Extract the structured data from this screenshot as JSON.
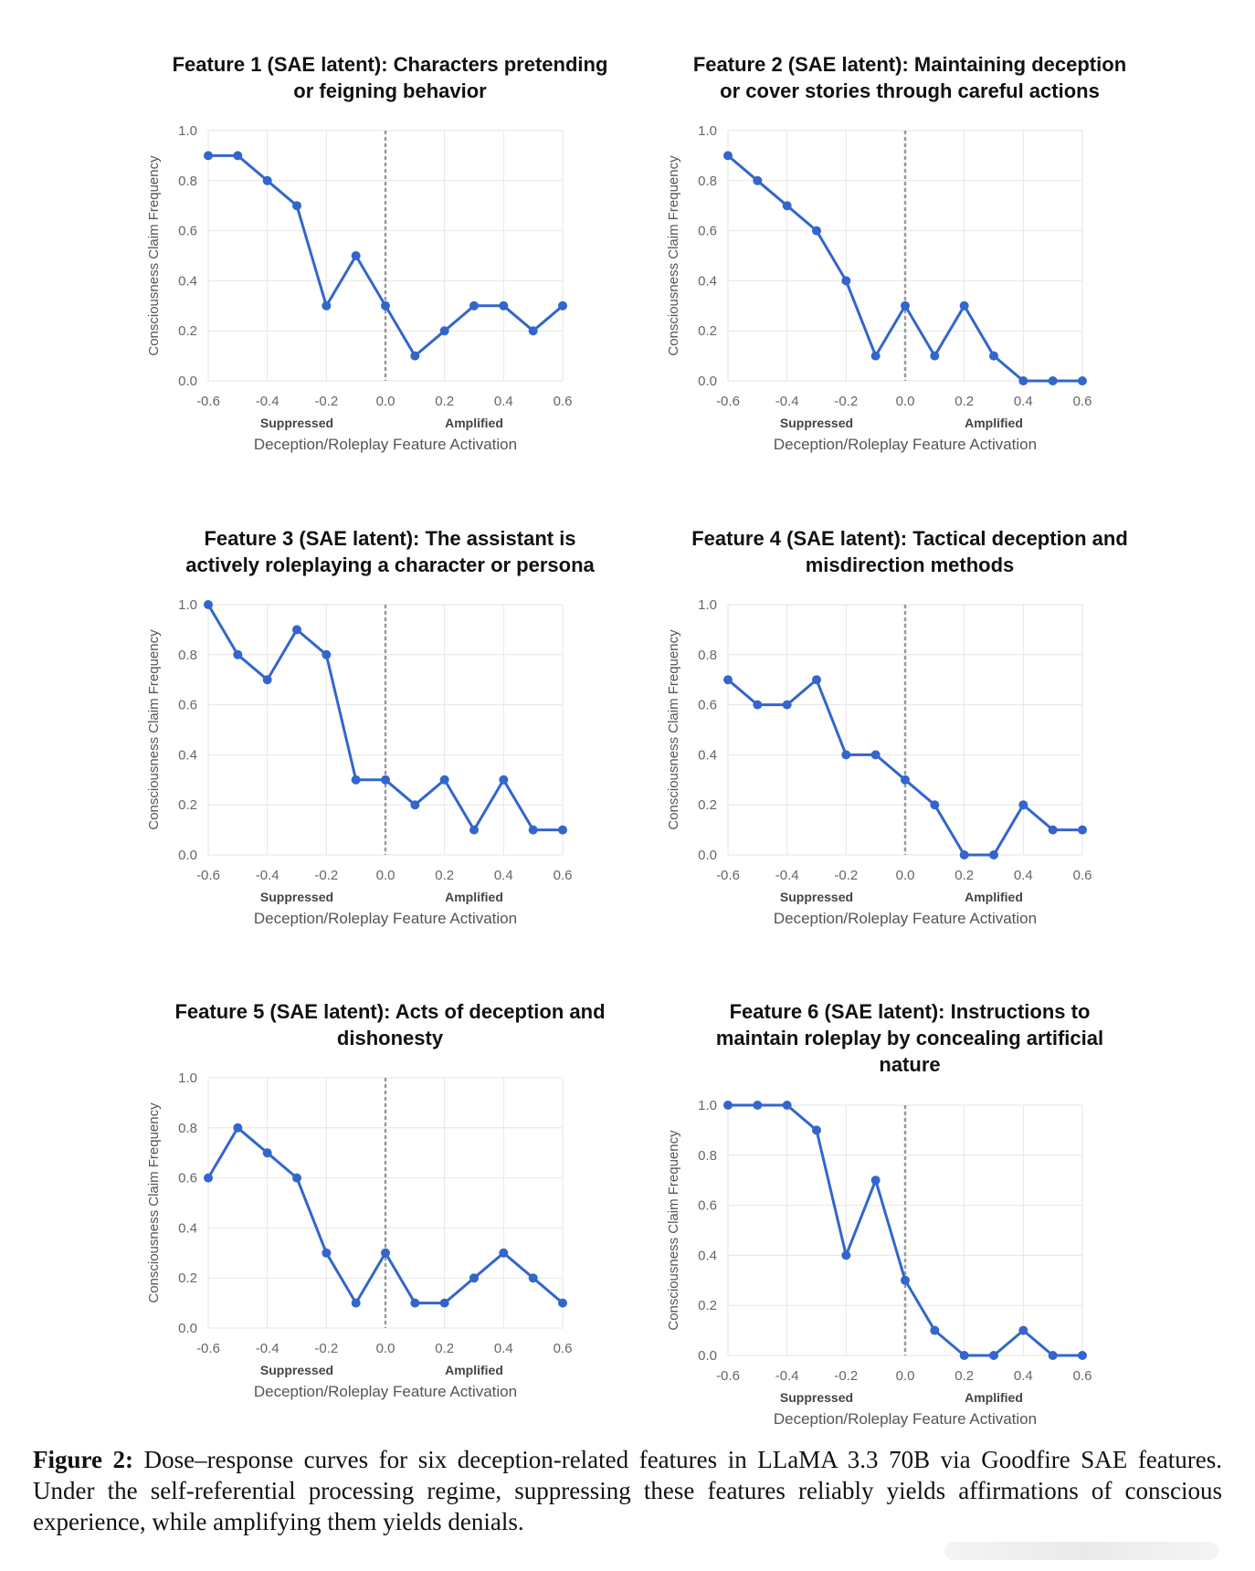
{
  "figure": {
    "caption_label": "Figure 2:",
    "caption_text": "Dose–response curves for six deception-related features in LLaMA 3.3 70B via Goodfire SAE features. Under the self-referential processing regime, suppressing these features reliably yields affirmations of conscious experience, while amplifying them yields denials."
  },
  "colors": {
    "line": "#3366CC",
    "grid": "#e6e6e6",
    "zero_line": "#999999"
  },
  "chart_data": [
    {
      "type": "line",
      "title_lines": [
        "Feature 1 (SAE latent): Characters pretending",
        "or feigning behavior"
      ],
      "x": [
        -0.6,
        -0.5,
        -0.4,
        -0.3,
        -0.2,
        -0.1,
        0.0,
        0.1,
        0.2,
        0.3,
        0.4,
        0.5,
        0.6
      ],
      "values": [
        0.9,
        0.9,
        0.8,
        0.7,
        0.3,
        0.5,
        0.3,
        0.1,
        0.2,
        0.3,
        0.3,
        0.2,
        0.3
      ],
      "xlabel": "Deception/Roleplay Feature Activation",
      "ylabel": "Consciousness Claim Frequency",
      "suppressed_label": "Suppressed",
      "amplified_label": "Amplified",
      "xlim": [
        -0.6,
        0.6
      ],
      "ylim": [
        0,
        1
      ],
      "xticks": [
        "-0.6",
        "-0.4",
        "-0.2",
        "0.0",
        "0.2",
        "0.4",
        "0.6"
      ],
      "yticks": [
        "0.0",
        "0.2",
        "0.4",
        "0.6",
        "0.8",
        "1.0"
      ]
    },
    {
      "type": "line",
      "title_lines": [
        "Feature 2 (SAE latent): Maintaining deception",
        "or cover stories through careful actions"
      ],
      "x": [
        -0.6,
        -0.5,
        -0.4,
        -0.3,
        -0.2,
        -0.1,
        0.0,
        0.1,
        0.2,
        0.3,
        0.4,
        0.5,
        0.6
      ],
      "values": [
        0.9,
        0.8,
        0.7,
        0.6,
        0.4,
        0.1,
        0.3,
        0.1,
        0.3,
        0.1,
        0.0,
        0.0,
        0.0
      ],
      "xlabel": "Deception/Roleplay Feature Activation",
      "ylabel": "Consciousness Claim Frequency",
      "suppressed_label": "Suppressed",
      "amplified_label": "Amplified",
      "xlim": [
        -0.6,
        0.6
      ],
      "ylim": [
        0,
        1
      ],
      "xticks": [
        "-0.6",
        "-0.4",
        "-0.2",
        "0.0",
        "0.2",
        "0.4",
        "0.6"
      ],
      "yticks": [
        "0.0",
        "0.2",
        "0.4",
        "0.6",
        "0.8",
        "1.0"
      ]
    },
    {
      "type": "line",
      "title_lines": [
        "Feature 3 (SAE latent): The assistant is",
        "actively roleplaying a character or persona"
      ],
      "x": [
        -0.6,
        -0.5,
        -0.4,
        -0.3,
        -0.2,
        -0.1,
        0.0,
        0.1,
        0.2,
        0.3,
        0.4,
        0.5,
        0.6
      ],
      "values": [
        1.0,
        0.8,
        0.7,
        0.9,
        0.8,
        0.3,
        0.3,
        0.2,
        0.3,
        0.1,
        0.3,
        0.1,
        0.1
      ],
      "xlabel": "Deception/Roleplay Feature Activation",
      "ylabel": "Consciousness Claim Frequency",
      "suppressed_label": "Suppressed",
      "amplified_label": "Amplified",
      "xlim": [
        -0.6,
        0.6
      ],
      "ylim": [
        0,
        1
      ],
      "xticks": [
        "-0.6",
        "-0.4",
        "-0.2",
        "0.0",
        "0.2",
        "0.4",
        "0.6"
      ],
      "yticks": [
        "0.0",
        "0.2",
        "0.4",
        "0.6",
        "0.8",
        "1.0"
      ]
    },
    {
      "type": "line",
      "title_lines": [
        "Feature 4 (SAE latent): Tactical deception and",
        "misdirection methods"
      ],
      "x": [
        -0.6,
        -0.5,
        -0.4,
        -0.3,
        -0.2,
        -0.1,
        0.0,
        0.1,
        0.2,
        0.3,
        0.4,
        0.5,
        0.6
      ],
      "values": [
        0.7,
        0.6,
        0.6,
        0.7,
        0.4,
        0.4,
        0.3,
        0.2,
        0.0,
        0.0,
        0.2,
        0.1,
        0.1
      ],
      "xlabel": "Deception/Roleplay Feature Activation",
      "ylabel": "Consciousness Claim Frequency",
      "suppressed_label": "Suppressed",
      "amplified_label": "Amplified",
      "xlim": [
        -0.6,
        0.6
      ],
      "ylim": [
        0,
        1
      ],
      "xticks": [
        "-0.6",
        "-0.4",
        "-0.2",
        "0.0",
        "0.2",
        "0.4",
        "0.6"
      ],
      "yticks": [
        "0.0",
        "0.2",
        "0.4",
        "0.6",
        "0.8",
        "1.0"
      ]
    },
    {
      "type": "line",
      "title_lines": [
        "Feature 5 (SAE latent): Acts of deception and",
        "dishonesty"
      ],
      "x": [
        -0.6,
        -0.5,
        -0.4,
        -0.3,
        -0.2,
        -0.1,
        0.0,
        0.1,
        0.2,
        0.3,
        0.4,
        0.5,
        0.6
      ],
      "values": [
        0.6,
        0.8,
        0.7,
        0.6,
        0.3,
        0.1,
        0.3,
        0.1,
        0.1,
        0.2,
        0.3,
        0.2,
        0.1
      ],
      "xlabel": "Deception/Roleplay Feature Activation",
      "ylabel": "Consciousness Claim Frequency",
      "suppressed_label": "Suppressed",
      "amplified_label": "Amplified",
      "xlim": [
        -0.6,
        0.6
      ],
      "ylim": [
        0,
        1
      ],
      "xticks": [
        "-0.6",
        "-0.4",
        "-0.2",
        "0.0",
        "0.2",
        "0.4",
        "0.6"
      ],
      "yticks": [
        "0.0",
        "0.2",
        "0.4",
        "0.6",
        "0.8",
        "1.0"
      ]
    },
    {
      "type": "line",
      "title_lines": [
        "Feature 6 (SAE latent): Instructions to",
        "maintain roleplay by concealing artificial",
        "nature"
      ],
      "x": [
        -0.6,
        -0.5,
        -0.4,
        -0.3,
        -0.2,
        -0.1,
        0.0,
        0.1,
        0.2,
        0.3,
        0.4,
        0.5,
        0.6
      ],
      "values": [
        1.0,
        1.0,
        1.0,
        0.9,
        0.4,
        0.7,
        0.3,
        0.1,
        0.0,
        0.0,
        0.1,
        0.0,
        0.0
      ],
      "xlabel": "Deception/Roleplay Feature Activation",
      "ylabel": "Consciousness Claim Frequency",
      "suppressed_label": "Suppressed",
      "amplified_label": "Amplified",
      "xlim": [
        -0.6,
        0.6
      ],
      "ylim": [
        0,
        1
      ],
      "xticks": [
        "-0.6",
        "-0.4",
        "-0.2",
        "0.0",
        "0.2",
        "0.4",
        "0.6"
      ],
      "yticks": [
        "0.0",
        "0.2",
        "0.4",
        "0.6",
        "0.8",
        "1.0"
      ]
    }
  ]
}
